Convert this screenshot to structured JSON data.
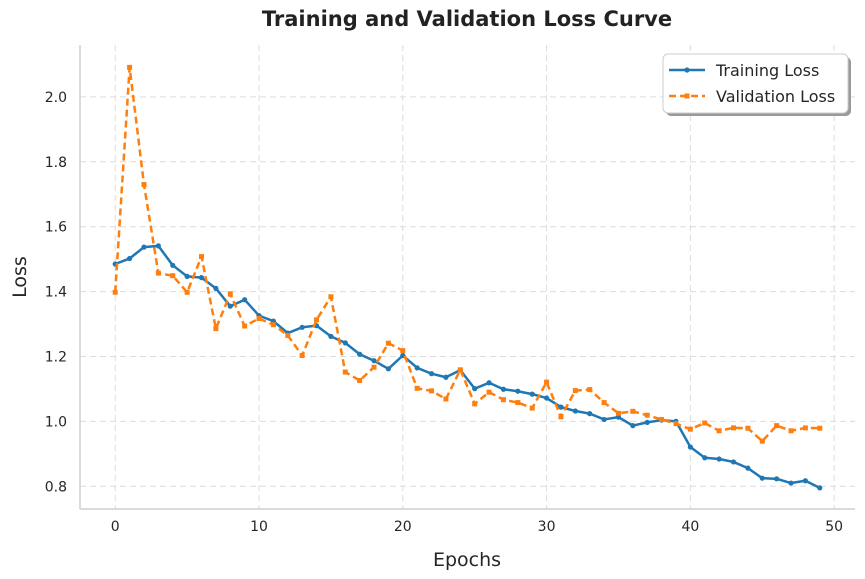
{
  "chart_data": {
    "type": "line",
    "title": "Training and Validation Loss Curve",
    "xlabel": "Epochs",
    "ylabel": "Loss",
    "xlim": [
      -2.45,
      51.45
    ],
    "ylim": [
      0.73,
      2.16
    ],
    "x_ticks": [
      0,
      10,
      20,
      30,
      40,
      50
    ],
    "y_ticks": [
      0.8,
      1.0,
      1.2,
      1.4,
      1.6,
      1.8,
      2.0
    ],
    "grid": true,
    "legend_position": "top-right",
    "x": [
      0,
      1,
      2,
      3,
      4,
      5,
      6,
      7,
      8,
      9,
      10,
      11,
      12,
      13,
      14,
      15,
      16,
      17,
      18,
      19,
      20,
      21,
      22,
      23,
      24,
      25,
      26,
      27,
      28,
      29,
      30,
      31,
      32,
      33,
      34,
      35,
      36,
      37,
      38,
      39,
      40,
      41,
      42,
      43,
      44,
      45,
      46,
      47,
      48,
      49
    ],
    "series": [
      {
        "name": "Training Loss",
        "color": "#1f77b4",
        "line_style": "solid",
        "marker": "circle",
        "values": [
          1.485,
          1.502,
          1.537,
          1.541,
          1.481,
          1.447,
          1.443,
          1.41,
          1.355,
          1.375,
          1.326,
          1.309,
          1.272,
          1.29,
          1.295,
          1.262,
          1.242,
          1.207,
          1.187,
          1.162,
          1.203,
          1.165,
          1.147,
          1.136,
          1.158,
          1.101,
          1.119,
          1.099,
          1.093,
          1.084,
          1.072,
          1.044,
          1.032,
          1.024,
          1.006,
          1.013,
          0.987,
          0.997,
          1.004,
          1.0,
          0.921,
          0.888,
          0.884,
          0.875,
          0.856,
          0.825,
          0.823,
          0.81,
          0.817,
          0.795
        ]
      },
      {
        "name": "Validation Loss",
        "color": "#ff7f0e",
        "line_style": "dashed",
        "marker": "square",
        "values": [
          1.398,
          2.091,
          1.73,
          1.457,
          1.449,
          1.398,
          1.508,
          1.286,
          1.393,
          1.294,
          1.317,
          1.298,
          1.265,
          1.203,
          1.313,
          1.384,
          1.152,
          1.126,
          1.167,
          1.241,
          1.218,
          1.102,
          1.094,
          1.069,
          1.159,
          1.054,
          1.09,
          1.067,
          1.058,
          1.041,
          1.121,
          1.014,
          1.095,
          1.098,
          1.058,
          1.025,
          1.031,
          1.019,
          1.006,
          0.993,
          0.976,
          0.995,
          0.971,
          0.98,
          0.979,
          0.939,
          0.987,
          0.971,
          0.98,
          0.979
        ]
      }
    ]
  }
}
